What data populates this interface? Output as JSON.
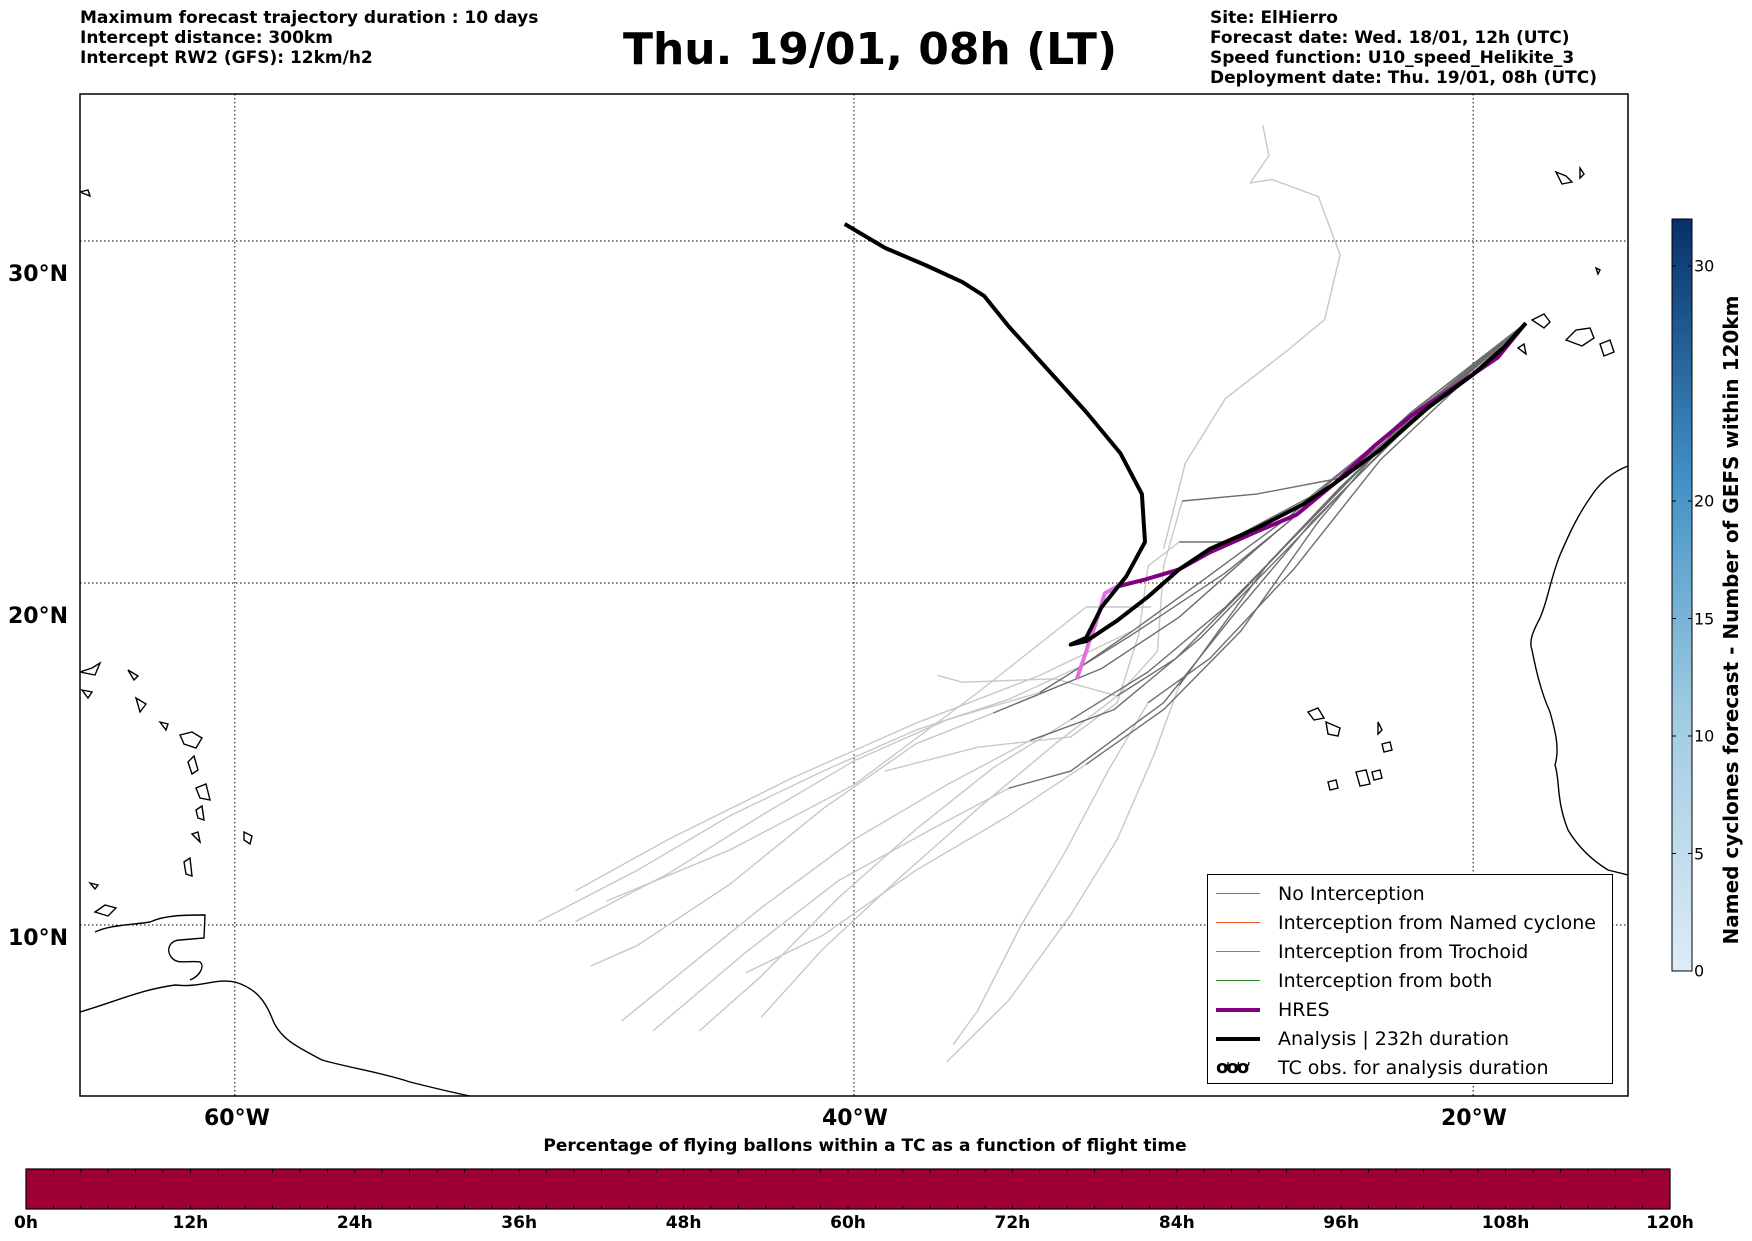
{
  "header": {
    "left": [
      "Maximum forecast trajectory duration : 10 days",
      "Intercept distance: 300km",
      "Intercept RW2 (GFS):  12km/h2"
    ],
    "title": "Thu. 19/01, 08h (LT)",
    "right": [
      "Site: ElHierro",
      "Forecast date: Wed. 18/01, 12h (UTC)",
      "Speed function: U10_speed_Helikite_3",
      "Deployment date: Thu. 19/01, 08h (UTC)"
    ]
  },
  "map": {
    "lon_range": [
      -65,
      -15
    ],
    "lat_range": [
      5,
      34.3
    ],
    "lon_labels": [
      "60°W",
      "40°W",
      "20°W"
    ],
    "lat_labels": [
      "30°N",
      "20°N",
      "10°N"
    ],
    "launch_site": {
      "lon": -18.3,
      "lat": 27.6
    },
    "analysis_track": [
      [
        -18.3,
        27.6
      ],
      [
        -19.0,
        26.9
      ],
      [
        -20.0,
        26.1
      ],
      [
        -21.5,
        25.1
      ],
      [
        -23.0,
        23.9
      ],
      [
        -24.5,
        22.9
      ],
      [
        -25.5,
        22.3
      ],
      [
        -27.0,
        21.6
      ],
      [
        -28.5,
        21.0
      ],
      [
        -29.5,
        20.4
      ],
      [
        -30.5,
        19.6
      ],
      [
        -31.5,
        18.9
      ],
      [
        -32.5,
        18.3
      ],
      [
        -33.0,
        18.2
      ],
      [
        -32.5,
        18.4
      ],
      [
        -32.0,
        19.3
      ],
      [
        -31.2,
        20.2
      ],
      [
        -30.6,
        21.2
      ],
      [
        -30.7,
        22.6
      ],
      [
        -31.4,
        23.8
      ],
      [
        -32.5,
        25.0
      ],
      [
        -33.8,
        26.3
      ],
      [
        -35.0,
        27.5
      ],
      [
        -35.8,
        28.4
      ],
      [
        -36.5,
        28.8
      ],
      [
        -37.7,
        29.3
      ],
      [
        -39.0,
        29.8
      ],
      [
        -40.3,
        30.5
      ]
    ],
    "hres_track": [
      [
        -18.3,
        27.6
      ],
      [
        -19.2,
        26.6
      ],
      [
        -20.5,
        25.8
      ],
      [
        -22.0,
        24.9
      ],
      [
        -23.2,
        24.0
      ],
      [
        -24.5,
        22.9
      ],
      [
        -25.7,
        22.0
      ],
      [
        -27.0,
        21.5
      ],
      [
        -28.5,
        20.9
      ],
      [
        -29.5,
        20.4
      ],
      [
        -30.6,
        20.1
      ],
      [
        -31.5,
        19.9
      ],
      [
        -31.9,
        19.7
      ],
      [
        -32.2,
        18.8
      ],
      [
        -32.4,
        18.3
      ],
      [
        -32.5,
        18.0
      ],
      [
        -32.8,
        17.2
      ]
    ],
    "ensemble": [
      {
        "group": "dark",
        "points": [
          [
            -18.3,
            27.6
          ],
          [
            -22,
            25
          ],
          [
            -25,
            22.5
          ],
          [
            -28,
            20.3
          ],
          [
            -31,
            18.5
          ],
          [
            -34,
            16.8
          ]
        ]
      },
      {
        "group": "dark",
        "points": [
          [
            -18.3,
            27.6
          ],
          [
            -21,
            25.5
          ],
          [
            -24,
            23.3
          ],
          [
            -27,
            21
          ],
          [
            -29.5,
            19
          ],
          [
            -32,
            17.5
          ],
          [
            -35.5,
            16.2
          ]
        ]
      },
      {
        "group": "dark",
        "points": [
          [
            -18.3,
            27.6
          ],
          [
            -22.5,
            24.4
          ],
          [
            -25.5,
            21.6
          ],
          [
            -28,
            19.3
          ],
          [
            -30.5,
            17.4
          ],
          [
            -33,
            16
          ]
        ]
      },
      {
        "group": "dark",
        "points": [
          [
            -18.3,
            27.6
          ],
          [
            -21.5,
            25.2
          ],
          [
            -24.3,
            22.8
          ],
          [
            -26.6,
            20.6
          ],
          [
            -28.3,
            18.5
          ],
          [
            -29.5,
            17
          ]
        ]
      },
      {
        "group": "dark",
        "points": [
          [
            -18.3,
            27.6
          ],
          [
            -22.2,
            24.5
          ],
          [
            -25.2,
            21.8
          ],
          [
            -27.8,
            19
          ],
          [
            -30,
            16.5
          ],
          [
            -33,
            14.5
          ],
          [
            -35,
            14
          ]
        ]
      },
      {
        "group": "dark",
        "points": [
          [
            -18.3,
            27.6
          ],
          [
            -21.8,
            25
          ],
          [
            -24.8,
            22.3
          ],
          [
            -27.3,
            19.9
          ],
          [
            -29.6,
            17.8
          ],
          [
            -31.5,
            16.7
          ]
        ]
      },
      {
        "group": "dark",
        "points": [
          [
            -18.3,
            27.6
          ],
          [
            -22,
            24.9
          ],
          [
            -25.3,
            22.5
          ],
          [
            -28,
            21.2
          ],
          [
            -29.5,
            21.2
          ]
        ]
      },
      {
        "group": "dark",
        "points": [
          [
            -18.3,
            27.6
          ],
          [
            -21.3,
            25.4
          ],
          [
            -24.1,
            23.1
          ],
          [
            -27,
            22.6
          ],
          [
            -29.4,
            22.4
          ]
        ]
      },
      {
        "group": "dark",
        "points": [
          [
            -18.3,
            27.6
          ],
          [
            -22.8,
            24
          ],
          [
            -26,
            21
          ],
          [
            -28.8,
            18.4
          ],
          [
            -31.6,
            16.3
          ],
          [
            -34.3,
            15.4
          ]
        ]
      },
      {
        "group": "dark",
        "points": [
          [
            -18.3,
            27.6
          ],
          [
            -21,
            25.7
          ],
          [
            -23.5,
            23.8
          ],
          [
            -26,
            21.9
          ],
          [
            -28.7,
            20.1
          ],
          [
            -31,
            18.6
          ],
          [
            -32.6,
            17.6
          ]
        ]
      },
      {
        "group": "dark",
        "points": [
          [
            -18.3,
            27.6
          ],
          [
            -23,
            23.6
          ],
          [
            -25.8,
            20.4
          ],
          [
            -28.5,
            17.8
          ],
          [
            -30.5,
            16.5
          ]
        ]
      },
      {
        "group": "dark",
        "points": [
          [
            -18.3,
            27.6
          ],
          [
            -22.4,
            24.6
          ],
          [
            -25,
            21.8
          ],
          [
            -27.5,
            18.6
          ],
          [
            -30,
            16.3
          ],
          [
            -32.5,
            14.7
          ]
        ]
      },
      {
        "group": "light",
        "points": [
          [
            -34,
            16.8
          ],
          [
            -37,
            16
          ],
          [
            -40,
            14.8
          ],
          [
            -43,
            13.2
          ],
          [
            -46,
            11.5
          ],
          [
            -49,
            10.1
          ]
        ]
      },
      {
        "group": "light",
        "points": [
          [
            -35.5,
            16.2
          ],
          [
            -38,
            15.3
          ],
          [
            -41,
            13.4
          ],
          [
            -44,
            11.2
          ],
          [
            -47,
            9.4
          ],
          [
            -48.5,
            8.8
          ]
        ]
      },
      {
        "group": "light",
        "points": [
          [
            -33,
            16
          ],
          [
            -35.5,
            14.6
          ],
          [
            -38,
            12.8
          ],
          [
            -40.5,
            10.8
          ],
          [
            -43,
            8.5
          ],
          [
            -45,
            6.9
          ]
        ]
      },
      {
        "group": "light",
        "points": [
          [
            -29.5,
            17
          ],
          [
            -30.3,
            15
          ],
          [
            -31.5,
            12.5
          ],
          [
            -33,
            10.3
          ],
          [
            -35,
            7.8
          ],
          [
            -37,
            6
          ]
        ]
      },
      {
        "group": "light",
        "points": [
          [
            -35,
            14
          ],
          [
            -37.5,
            12.8
          ],
          [
            -40.5,
            11.3
          ],
          [
            -43.5,
            9.2
          ],
          [
            -46.5,
            6.9
          ]
        ]
      },
      {
        "group": "light",
        "points": [
          [
            -31.5,
            16.7
          ],
          [
            -33.5,
            15.3
          ],
          [
            -36,
            13.4
          ],
          [
            -38.5,
            11.4
          ],
          [
            -41,
            9.3
          ],
          [
            -43,
            7.3
          ]
        ]
      },
      {
        "group": "light",
        "points": [
          [
            -29.5,
            21.2
          ],
          [
            -30.5,
            20.5
          ],
          [
            -30.8,
            18.5
          ],
          [
            -31.5,
            16.5
          ],
          [
            -33,
            15.5
          ],
          [
            -36,
            15.2
          ],
          [
            -39,
            14.5
          ]
        ]
      },
      {
        "group": "light",
        "points": [
          [
            -29.4,
            22.4
          ],
          [
            -30,
            20.5
          ],
          [
            -30.2,
            18
          ],
          [
            -31.5,
            16.7
          ],
          [
            -33.5,
            17.2
          ],
          [
            -36.5,
            17.1
          ],
          [
            -37.3,
            17.3
          ]
        ]
      },
      {
        "group": "light",
        "points": [
          [
            -34.3,
            15.4
          ],
          [
            -37,
            14.1
          ],
          [
            -40,
            12.5
          ],
          [
            -43,
            10.5
          ],
          [
            -46,
            8.3
          ],
          [
            -47.5,
            7.2
          ]
        ]
      },
      {
        "group": "light",
        "points": [
          [
            -32.6,
            17.6
          ],
          [
            -35,
            16.6
          ],
          [
            -38,
            15.7
          ],
          [
            -41,
            14.5
          ],
          [
            -44,
            13.2
          ],
          [
            -47,
            11.6
          ],
          [
            -50.2,
            10.1
          ]
        ]
      },
      {
        "group": "light",
        "points": [
          [
            -30.5,
            16.5
          ],
          [
            -31.8,
            14.5
          ],
          [
            -33.2,
            12.1
          ],
          [
            -34.6,
            10
          ],
          [
            -36,
            7.5
          ],
          [
            -36.8,
            6.5
          ]
        ]
      },
      {
        "group": "light",
        "points": [
          [
            -32.5,
            14.7
          ],
          [
            -35,
            13.2
          ],
          [
            -38,
            11.6
          ],
          [
            -41,
            9.7
          ],
          [
            -43.5,
            8.6
          ]
        ]
      },
      {
        "group": "light",
        "points": [
          [
            -31,
            18.6
          ],
          [
            -34,
            17.3
          ],
          [
            -38,
            15.9
          ],
          [
            -42,
            14.3
          ],
          [
            -46,
            12.5
          ],
          [
            -49,
            11
          ]
        ]
      },
      {
        "group": "light",
        "points": [
          [
            -30,
            21
          ],
          [
            -29.3,
            23.5
          ],
          [
            -28,
            25.4
          ],
          [
            -26,
            26.8
          ],
          [
            -24.8,
            27.7
          ],
          [
            -24.3,
            29.6
          ],
          [
            -25,
            31.3
          ],
          [
            -26.5,
            31.8
          ],
          [
            -27.2,
            31.7
          ],
          [
            -26.6,
            32.5
          ],
          [
            -26.8,
            33.4
          ]
        ]
      },
      {
        "group": "light",
        "points": [
          [
            -30.4,
            19.3
          ],
          [
            -32.5,
            19.3
          ],
          [
            -36,
            16.8
          ],
          [
            -40,
            14.1
          ],
          [
            -44,
            12.2
          ],
          [
            -48,
            10.7
          ]
        ]
      }
    ],
    "colorbar": {
      "label": "Named cyclones forecast - Number of GEFS within 120km",
      "min": 0,
      "max": 32,
      "ticks": [
        "0",
        "5",
        "10",
        "15",
        "20",
        "30"
      ]
    },
    "legend": [
      {
        "label": "No Interception",
        "color": "#777777",
        "style": "thin"
      },
      {
        "label": "Interception from Named cyclone",
        "color": "#e8561e",
        "style": "thin"
      },
      {
        "label": "Interception from Trochoid",
        "color": "#8a8a2a",
        "style": "thin"
      },
      {
        "label": "Interception from both",
        "color": "#2a8a2a",
        "style": "thin"
      },
      {
        "label": "HRES",
        "color": "#800080",
        "style": "thick"
      },
      {
        "label": "Analysis | 232h duration",
        "color": "#000000",
        "style": "thick"
      },
      {
        "label": "TC obs. for analysis duration",
        "color": "#000000",
        "style": "icon"
      }
    ]
  },
  "percentage_bar": {
    "title": "Percentage of flying ballons within a TC as a function of flight time",
    "fill_color": "#9e0036",
    "tick_labels": [
      "0h",
      "12h",
      "24h",
      "36h",
      "48h",
      "60h",
      "72h",
      "84h",
      "96h",
      "108h",
      "120h"
    ]
  }
}
